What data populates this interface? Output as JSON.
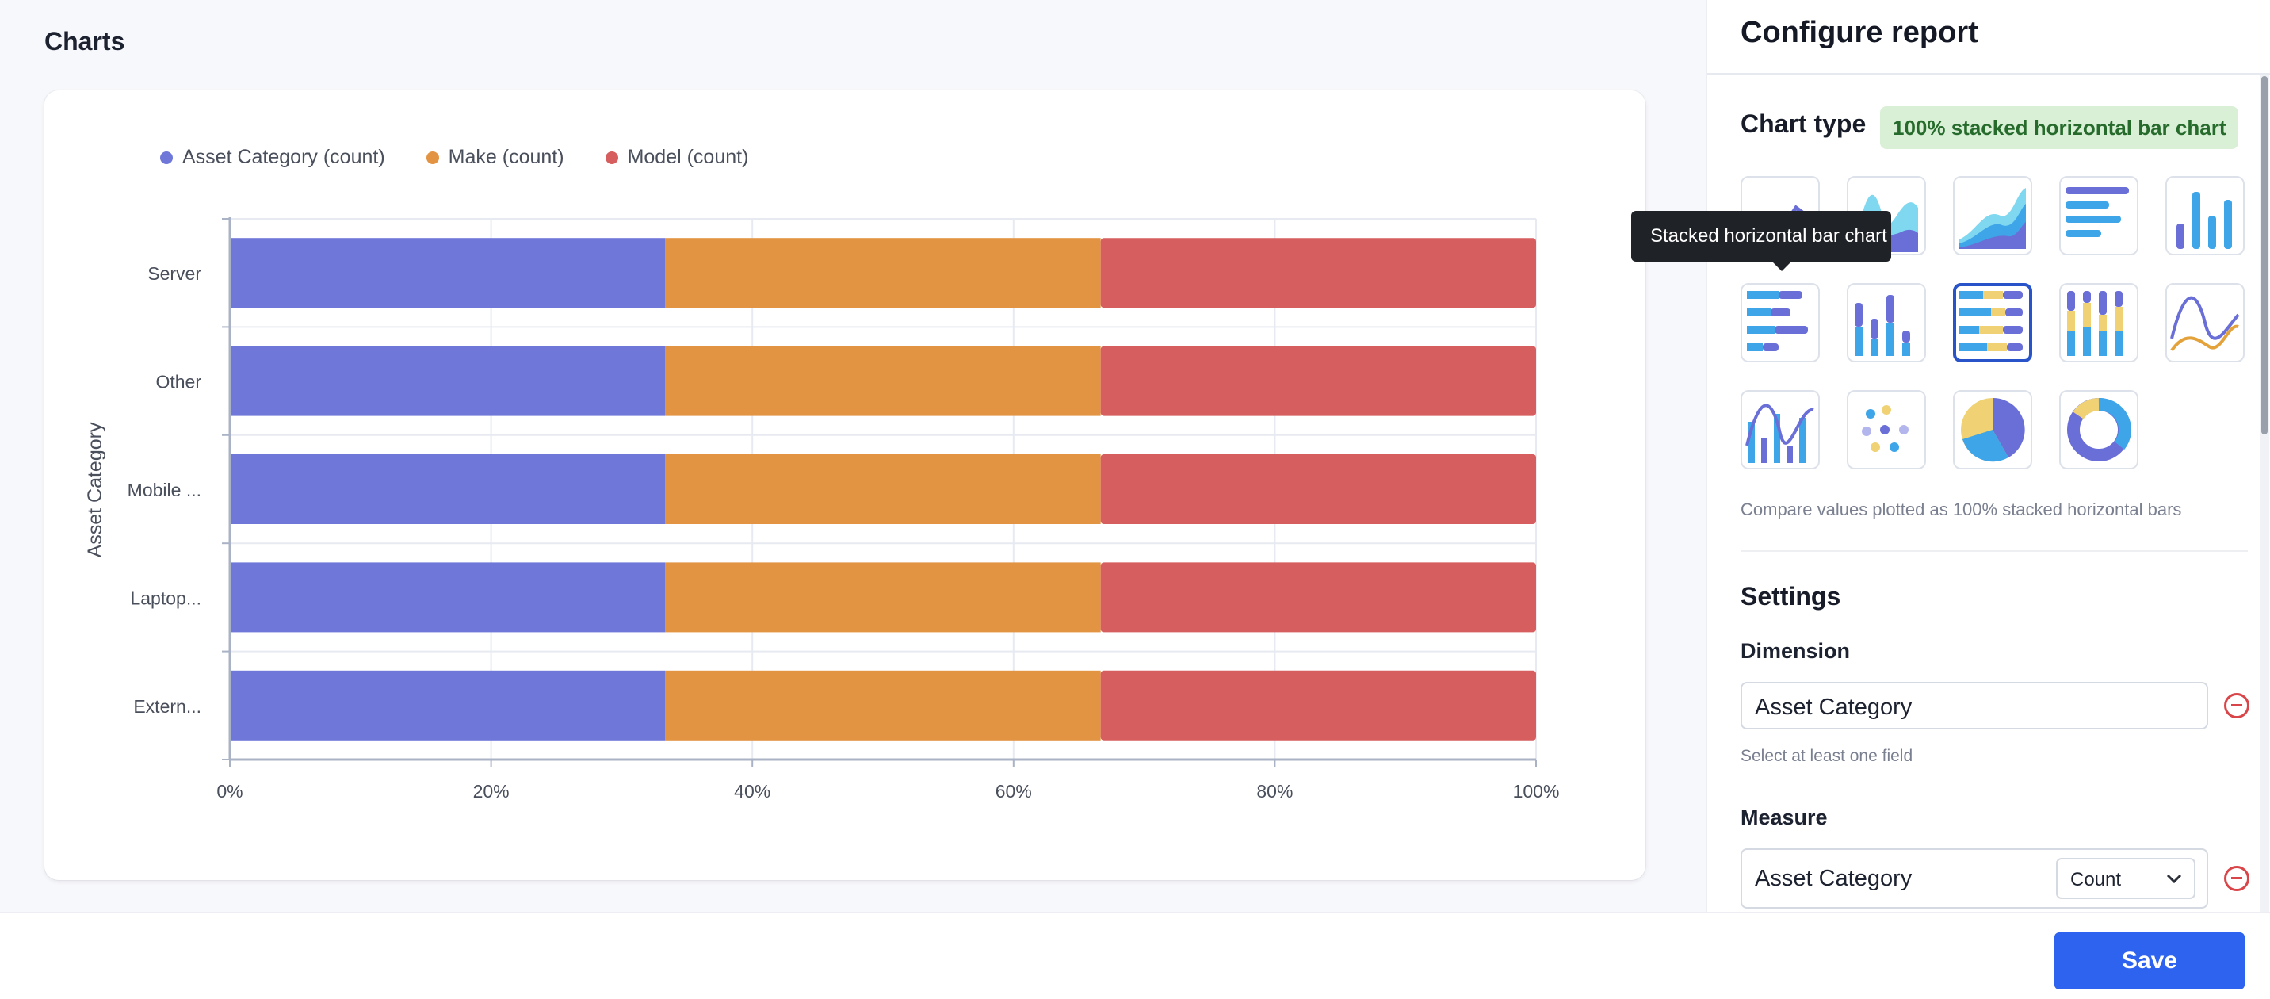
{
  "page": {
    "title": "Charts"
  },
  "chart_data": {
    "type": "bar",
    "orientation": "horizontal",
    "stacked": "100%",
    "categories": [
      "Server",
      "Other",
      "Mobile ...",
      "Laptop...",
      "Extern..."
    ],
    "series": [
      {
        "name": "Asset Category (count)",
        "color": "#6f78d8",
        "values": [
          1,
          1,
          1,
          1,
          1
        ]
      },
      {
        "name": "Make (count)",
        "color": "#e39443",
        "values": [
          1,
          1,
          1,
          1,
          1
        ]
      },
      {
        "name": "Model (count)",
        "color": "#d65e5e",
        "values": [
          1,
          1,
          1,
          1,
          1
        ]
      }
    ],
    "ylabel": "Asset Category",
    "xlabel": "",
    "xlim": [
      0,
      100
    ],
    "x_ticks": [
      "0%",
      "20%",
      "40%",
      "60%",
      "80%",
      "100%"
    ],
    "grid": true,
    "legend": "top-left"
  },
  "panel": {
    "title": "Configure report",
    "chart_type": {
      "heading": "Chart type",
      "selected_badge": "100% stacked horizontal bar chart",
      "options": [
        {
          "icon": "line-chart-icon"
        },
        {
          "icon": "area-wave-chart-icon"
        },
        {
          "icon": "stacked-area-chart-icon"
        },
        {
          "icon": "horizontal-bar-chart-icon"
        },
        {
          "icon": "vertical-bar-chart-icon"
        },
        {
          "icon": "stacked-horizontal-bar-chart-icon"
        },
        {
          "icon": "stacked-vertical-bar-chart-icon"
        },
        {
          "icon": "percent-stacked-horizontal-bar-chart-icon",
          "selected": true
        },
        {
          "icon": "percent-stacked-vertical-bar-chart-icon"
        },
        {
          "icon": "spline-chart-icon"
        },
        {
          "icon": "bar-line-combo-chart-icon"
        },
        {
          "icon": "scatter-chart-icon"
        },
        {
          "icon": "pie-chart-icon"
        },
        {
          "icon": "donut-chart-icon"
        }
      ],
      "description": "Compare values plotted as 100% stacked horizontal bars"
    },
    "tooltip": "Stacked horizontal bar chart",
    "settings": {
      "heading": "Settings",
      "dimension": {
        "label": "Dimension",
        "value": "Asset Category",
        "hint": "Select at least one field"
      },
      "measure": {
        "label": "Measure",
        "value": "Asset Category",
        "aggregation": "Count"
      }
    }
  },
  "footer": {
    "save_label": "Save"
  },
  "colors": {
    "accent": "#2d63ef",
    "selected_border": "#2853c9",
    "remove": "#d9464a"
  }
}
